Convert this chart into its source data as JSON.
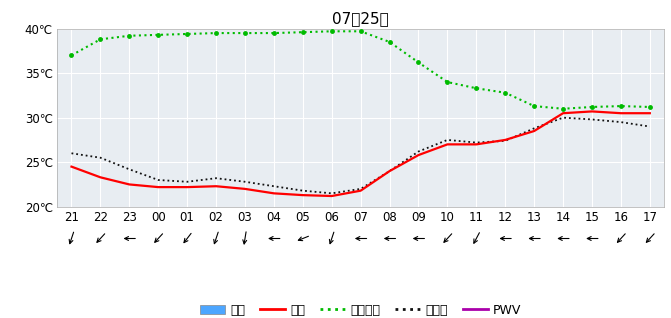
{
  "title": "07月25日",
  "x_labels": [
    "21",
    "22",
    "23",
    "00",
    "01",
    "02",
    "03",
    "04",
    "05",
    "06",
    "07",
    "08",
    "09",
    "10",
    "11",
    "12",
    "13",
    "14",
    "15",
    "16",
    "17"
  ],
  "x_values": [
    0,
    1,
    2,
    3,
    4,
    5,
    6,
    7,
    8,
    9,
    10,
    11,
    12,
    13,
    14,
    15,
    16,
    17,
    18,
    19,
    20
  ],
  "ylim": [
    20,
    40
  ],
  "yticks": [
    20,
    25,
    30,
    35,
    40
  ],
  "ytick_labels": [
    "20℃",
    "25℃",
    "30℃",
    "35℃",
    "40℃"
  ],
  "temp_color": "#ff0000",
  "humidity_color": "#00bb00",
  "visibility_color": "#111111",
  "pwv_color": "#aa00aa",
  "fig_bg": "#ffffff",
  "ax_bg": "#e8edf2",
  "grid_color": "#ffffff",
  "temp_data": [
    24.5,
    23.3,
    22.5,
    22.2,
    22.2,
    22.3,
    22.0,
    21.5,
    21.3,
    21.2,
    21.8,
    24.0,
    25.8,
    27.0,
    27.0,
    27.5,
    28.5,
    30.5,
    30.7,
    30.5,
    30.5
  ],
  "humidity_data": [
    37.0,
    38.8,
    39.2,
    39.3,
    39.4,
    39.5,
    39.5,
    39.5,
    39.6,
    39.7,
    39.7,
    38.5,
    36.2,
    34.0,
    33.3,
    32.8,
    31.3,
    31.0,
    31.2,
    31.3,
    31.2
  ],
  "visibility_data": [
    26.0,
    25.5,
    24.2,
    23.0,
    22.8,
    23.2,
    22.8,
    22.3,
    21.8,
    21.5,
    22.0,
    24.0,
    26.2,
    27.5,
    27.2,
    27.4,
    28.8,
    30.0,
    29.8,
    29.5,
    29.0
  ],
  "wind_angles": [
    200,
    225,
    270,
    225,
    220,
    200,
    190,
    270,
    250,
    200,
    270,
    270,
    270,
    225,
    210,
    270,
    270,
    270,
    270,
    225,
    225
  ],
  "legend_labels": [
    "降水",
    "温度",
    "相对湿度",
    "能见度",
    "PWV"
  ],
  "title_fontsize": 11,
  "tick_fontsize": 8.5,
  "legend_fontsize": 9
}
